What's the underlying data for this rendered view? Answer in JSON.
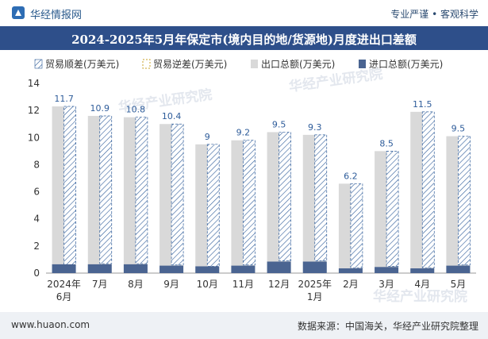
{
  "header": {
    "brand": "华经情报网",
    "tagline": "专业严谨 • 客观科学"
  },
  "watermark": "华经产业研究院",
  "footer": {
    "url": "www.huaon.com",
    "source": "数据来源：中国海关，华经产业研究院整理"
  },
  "colors": {
    "title_bg": "#2e4f8a",
    "export_bar": "#d9d9d9",
    "import_bar": "#4a6491",
    "hatch_stroke": "#2e5c9a",
    "legend_dashed": "#c9a227"
  },
  "chart_data": {
    "type": "bar",
    "title": "2024-2025年5月年保定市(境内目的地/货源地)月度进出口差额",
    "categories": [
      "2024年\n6月",
      "7月",
      "8月",
      "9月",
      "10月",
      "11月",
      "12月",
      "2025年\n1月",
      "2月",
      "3月",
      "4月",
      "5月"
    ],
    "legend": [
      "贸易顺差(万美元)",
      "贸易逆差(万美元)",
      "出口总额(万美元)",
      "进口总额(万美元)"
    ],
    "series": [
      {
        "name": "贸易顺差(万美元)",
        "values": [
          11.7,
          10.9,
          10.8,
          10.4,
          9,
          9.2,
          9.5,
          9.3,
          6.2,
          8.5,
          11.5,
          9.5
        ]
      },
      {
        "name": "出口总额(万美元)",
        "values": [
          12.3,
          11.6,
          11.5,
          11.0,
          9.5,
          9.8,
          10.4,
          10.2,
          6.6,
          9.0,
          11.9,
          10.1
        ]
      },
      {
        "name": "进口总额(万美元)",
        "values": [
          0.65,
          0.65,
          0.65,
          0.55,
          0.5,
          0.55,
          0.85,
          0.85,
          0.35,
          0.45,
          0.35,
          0.55
        ]
      }
    ],
    "data_labels": [
      "11.7",
      "10.9",
      "10.8",
      "10.4",
      "9",
      "9.2",
      "9.5",
      "9.3",
      "6.2",
      "8.5",
      "11.5",
      "9.5"
    ],
    "ylim": [
      0,
      14
    ],
    "yticks": [
      0,
      2,
      4,
      6,
      8,
      10,
      12,
      14
    ],
    "xlabel": "",
    "ylabel": ""
  }
}
